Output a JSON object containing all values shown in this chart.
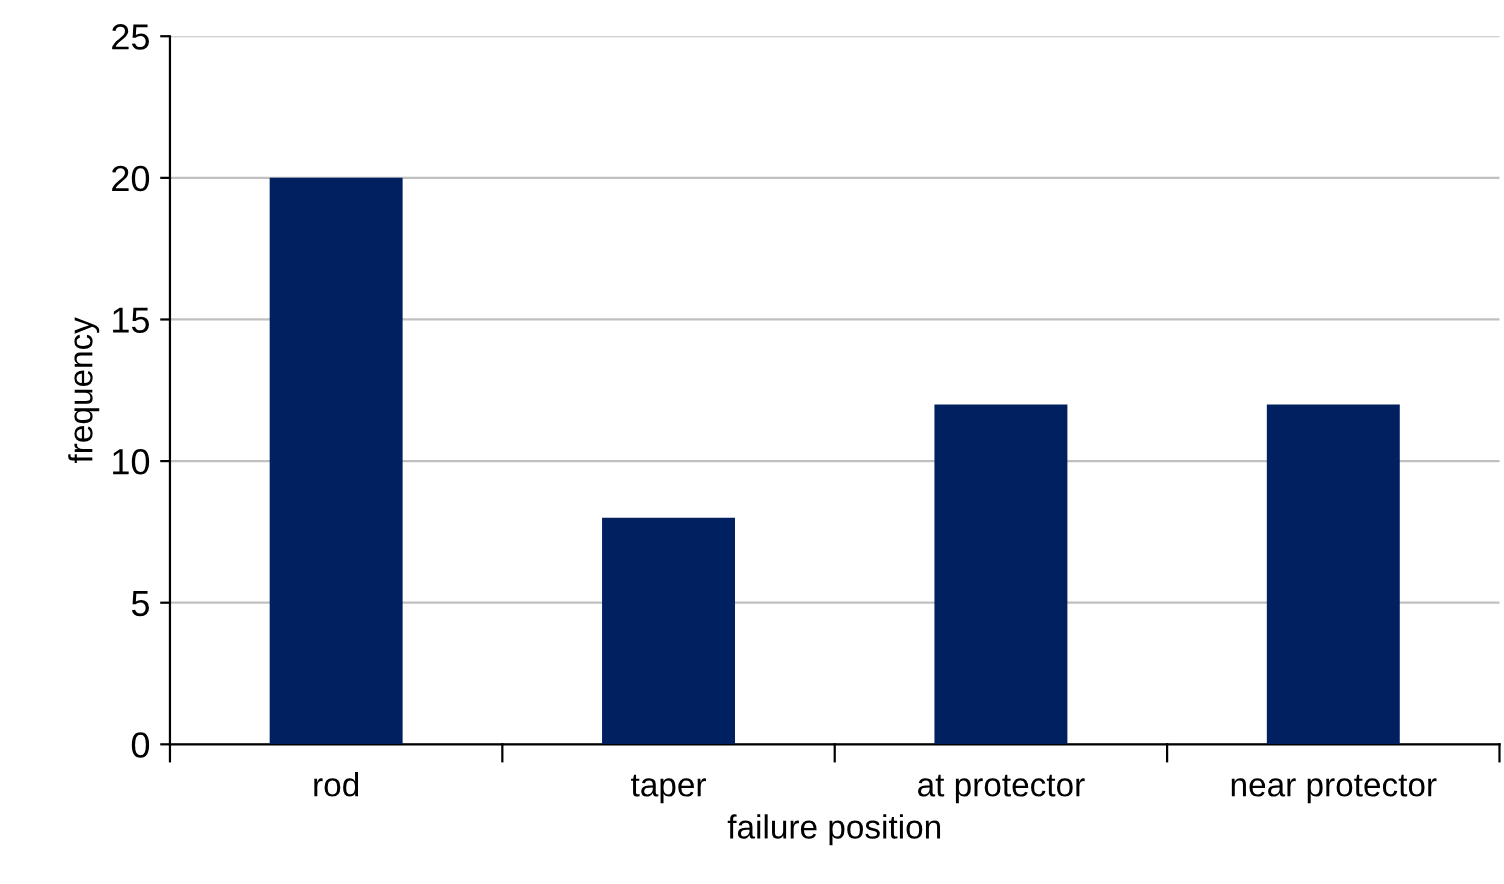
{
  "chart_data": {
    "type": "bar",
    "xlabel": "failure position",
    "ylabel": "frequency",
    "categories": [
      "rod",
      "taper",
      "at protector",
      "near protector"
    ],
    "values": [
      20,
      8,
      12,
      12
    ],
    "color": "#002060",
    "ylim": [
      0,
      25
    ],
    "yticks": [
      0,
      5,
      10,
      15,
      20,
      25
    ],
    "grid": "y",
    "legend": false
  }
}
